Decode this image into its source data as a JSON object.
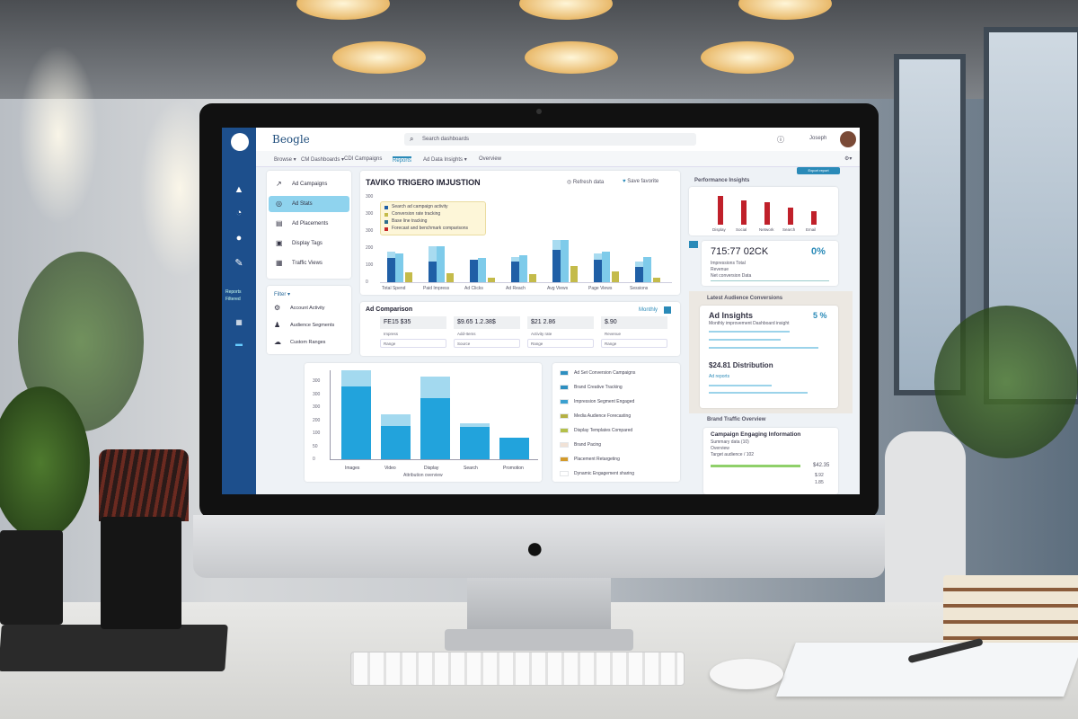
{
  "scene": {
    "apple_logo": "apple-icon"
  },
  "app": {
    "logo_text": "Beogle",
    "search_placeholder": "Search dashboards",
    "user_name": "Joseph",
    "nav": [
      "Browse ▾",
      "CM Dashboards ▾",
      "CDI Campaigns",
      "Reports",
      "Ad Data Insights ▾",
      "Overview"
    ],
    "active_nav": 3,
    "menu": [
      {
        "icon": "growth-icon",
        "label": "Ad Campaigns"
      },
      {
        "icon": "target-icon",
        "label": "Ad Stats"
      },
      {
        "icon": "calendar-icon",
        "label": "Ad Placements"
      },
      {
        "icon": "document-icon",
        "label": "Display Tags"
      },
      {
        "icon": "grid-icon",
        "label": "Traffic Views"
      }
    ],
    "menu_active": 1,
    "filter_title": "Filter ▾",
    "filters": [
      {
        "icon": "gear-icon",
        "label": "Account Activity"
      },
      {
        "icon": "people-icon",
        "label": "Audience Segments"
      },
      {
        "icon": "cloud-icon",
        "label": "Custom Ranges"
      }
    ],
    "sidebar_text": [
      "Reports",
      "Filtered"
    ],
    "main_chart": {
      "title": "TAVIKO TRIGERO IMJUSTION",
      "action1": "Refresh data",
      "action2": "Save favorite",
      "y_ticks": [
        "0",
        "100",
        "200",
        "300",
        "300",
        "300"
      ],
      "categories": [
        "Total Spend",
        "Paid Impress",
        "Ad Clicks",
        "Ad Reach",
        "Avg Views",
        "Page Views",
        "Sessions"
      ],
      "series": [
        {
          "color": "#1f5fa6",
          "values": [
            140,
            120,
            130,
            120,
            190,
            130,
            90
          ]
        },
        {
          "color": "#a8dbf0",
          "values": [
            40,
            90,
            0,
            30,
            60,
            40,
            30
          ]
        },
        {
          "color": "#7ecbea",
          "values": [
            170,
            210,
            140,
            160,
            250,
            180,
            150
          ]
        },
        {
          "color": "#c4bb4a",
          "values": [
            60,
            55,
            25,
            45,
            95,
            65,
            25
          ]
        }
      ],
      "legend": [
        {
          "color": "#1f5fa6",
          "label": "Search ad campaign activity"
        },
        {
          "color": "#c4bb4a",
          "label": "Conversion rate tracking"
        },
        {
          "color": "#2e6e8c",
          "label": "Base line tracking"
        },
        {
          "color": "#c62828",
          "label": "Forecast and benchmark comparisons"
        }
      ]
    },
    "comparison": {
      "title": "Ad Comparison",
      "link": "Monthly",
      "items": [
        {
          "value": "FE15 $35",
          "sub": "Impress",
          "input": "Range"
        },
        {
          "value": "$9.65 1.2.38$",
          "sub": "Add-Items",
          "input": "Source"
        },
        {
          "value": "$21 2.86",
          "sub": "Activity rate",
          "input": "Range"
        },
        {
          "value": "$.90",
          "sub": "Revenue",
          "input": "Range"
        }
      ]
    },
    "bottom_chart": {
      "y_ticks": [
        "0",
        "50",
        "100",
        "200",
        "300",
        "300",
        "300"
      ],
      "categories": [
        "Images",
        "Video",
        "Display",
        "Search",
        "Promotion"
      ],
      "base": [
        290,
        135,
        245,
        130,
        85
      ],
      "top": [
        65,
        45,
        85,
        15,
        0
      ],
      "legend_caption": "Attribution overview"
    },
    "legend_list": [
      {
        "color": "#2e8fc0",
        "label": "Ad Set Conversion Campaigns"
      },
      {
        "color": "#2e8fc0",
        "label": "Brand Creative Tracking"
      },
      {
        "color": "#3aa0d0",
        "label": "Impression Segment Engaged"
      },
      {
        "color": "#b4b044",
        "label": "Media Audience Forecasting"
      },
      {
        "color": "#b4c04a",
        "label": "Display Templates Compared"
      },
      {
        "color": "#f1e2d6",
        "label": "Brand Pacing"
      },
      {
        "color": "#d39a2a",
        "label": "Placement Retargeting"
      },
      {
        "color": "#ffffff",
        "label": "Dynamic Engagement sharing"
      }
    ],
    "right_chart": {
      "title": "Performance Insights",
      "button": "Export report",
      "categories": [
        "Display",
        "Social",
        "Network",
        "Search",
        "Email"
      ],
      "values": [
        95,
        80,
        75,
        55,
        45
      ],
      "color": "#c0202a"
    },
    "kpi": {
      "value": "715:77 02CK",
      "percent": "0%",
      "lines": [
        "Impressions Total",
        "Revenue",
        "Net conversion Data"
      ]
    },
    "analysis": {
      "title": "Latest Audience Conversions",
      "card1_title": "Ad Insights",
      "card1_percent": "5 %",
      "card1_sub": "Monthly improvement Dashboard insight",
      "card2_title": "$24.81 Distribution",
      "card2_sub": "Ad reports"
    },
    "traffic": {
      "title": "Brand Traffic Overview",
      "card_title": "Campaign Engaging Information",
      "lines": [
        "Summary data (10)",
        "Overview",
        "Target audience / 102"
      ],
      "amount": "$42.35",
      "rows": [
        "$.92",
        "1.85"
      ]
    }
  }
}
